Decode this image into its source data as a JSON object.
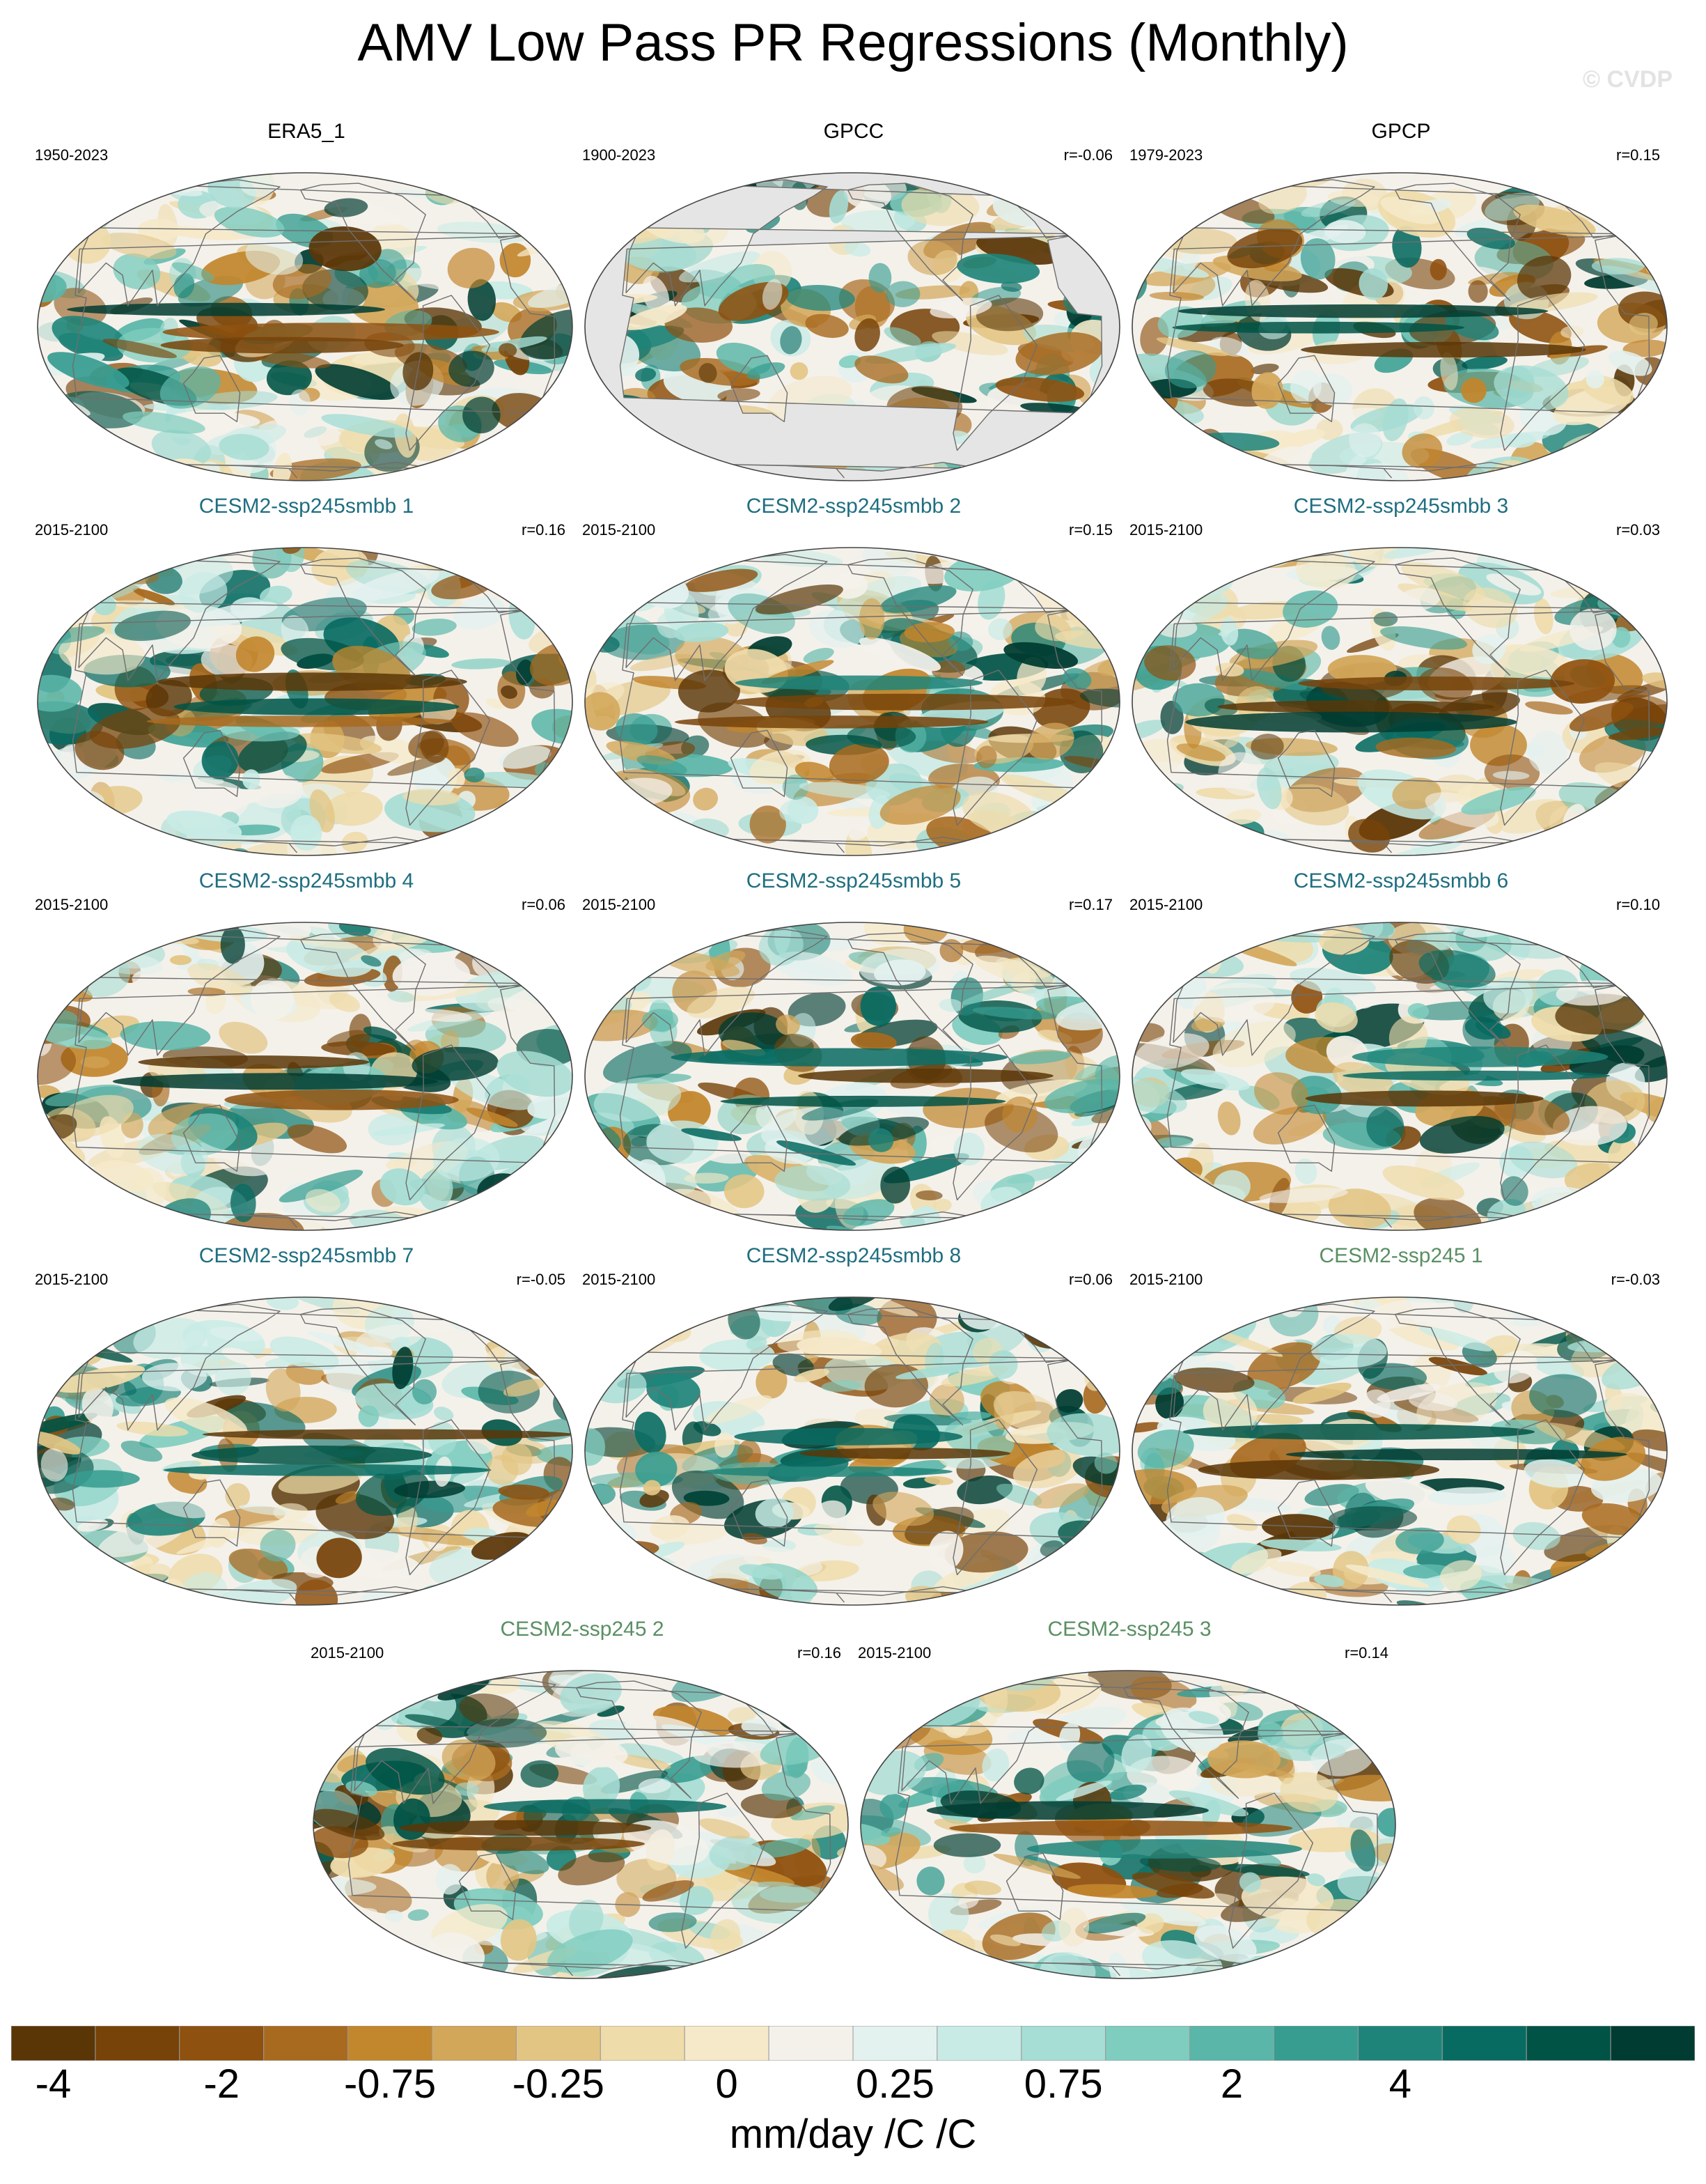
{
  "title": "AMV Low Pass PR Regressions (Monthly)",
  "watermark": "© CVDP",
  "colors": {
    "observation_title": "#000000",
    "smbb_title": "#1f6e80",
    "ssp245_title": "#5a8f63"
  },
  "chart_data": {
    "type": "map",
    "projection": "robinson",
    "panels": [
      {
        "title": "ERA5_1",
        "period": "1950-2023",
        "r": "",
        "group": "obs",
        "seed": 11
      },
      {
        "title": "GPCC",
        "period": "1900-2023",
        "r": "r=-0.06",
        "group": "obs",
        "seed": 23,
        "land_only": true
      },
      {
        "title": "GPCP",
        "period": "1979-2023",
        "r": "r=0.15",
        "group": "obs",
        "seed": 37
      },
      {
        "title": "CESM2-ssp245smbb 1",
        "period": "2015-2100",
        "r": "r=0.16",
        "group": "smbb",
        "seed": 41
      },
      {
        "title": "CESM2-ssp245smbb 2",
        "period": "2015-2100",
        "r": "r=0.15",
        "group": "smbb",
        "seed": 53
      },
      {
        "title": "CESM2-ssp245smbb 3",
        "period": "2015-2100",
        "r": "r=0.03",
        "group": "smbb",
        "seed": 67
      },
      {
        "title": "CESM2-ssp245smbb 4",
        "period": "2015-2100",
        "r": "r=0.06",
        "group": "smbb",
        "seed": 71
      },
      {
        "title": "CESM2-ssp245smbb 5",
        "period": "2015-2100",
        "r": "r=0.17",
        "group": "smbb",
        "seed": 83
      },
      {
        "title": "CESM2-ssp245smbb 6",
        "period": "2015-2100",
        "r": "r=0.10",
        "group": "smbb",
        "seed": 97
      },
      {
        "title": "CESM2-ssp245smbb 7",
        "period": "2015-2100",
        "r": "r=-0.05",
        "group": "smbb",
        "seed": 101
      },
      {
        "title": "CESM2-ssp245smbb 8",
        "period": "2015-2100",
        "r": "r=0.06",
        "group": "smbb",
        "seed": 113
      },
      {
        "title": "CESM2-ssp245 1",
        "period": "2015-2100",
        "r": "r=-0.03",
        "group": "ssp245",
        "seed": 127
      },
      {
        "title": "CESM2-ssp245 2",
        "period": "2015-2100",
        "r": "r=0.16",
        "group": "ssp245",
        "seed": 131
      },
      {
        "title": "CESM2-ssp245 3",
        "period": "2015-2100",
        "r": "r=0.14",
        "group": "ssp245",
        "seed": 149
      }
    ],
    "colorbar": {
      "colors": [
        "#5a3607",
        "#774309",
        "#8f510f",
        "#a86a1f",
        "#c2862d",
        "#d3a75a",
        "#e3c583",
        "#efdcab",
        "#f5e9c9",
        "#f4f1eb",
        "#e3f1ef",
        "#c8ebe6",
        "#a6ddd4",
        "#7fcdbf",
        "#5ab6a8",
        "#379d91",
        "#1e8479",
        "#086b62",
        "#005345",
        "#003c31"
      ],
      "tick_labels": [
        "-4",
        "-2",
        "-0.75",
        "-0.25",
        "0",
        "0.25",
        "0.75",
        "2",
        "4"
      ],
      "tick_boundaries": [
        2,
        4,
        6,
        8,
        10,
        12,
        14,
        16,
        18
      ],
      "units": "mm/day /C /C"
    }
  }
}
